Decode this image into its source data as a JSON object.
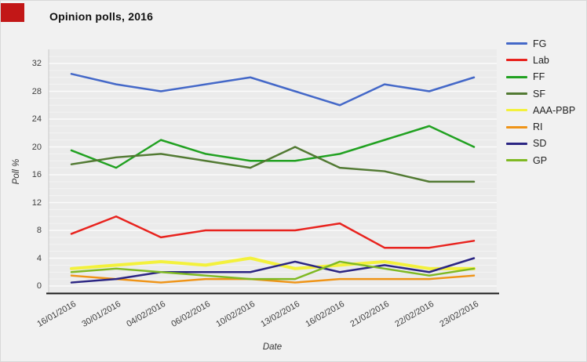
{
  "window": {
    "rec_indicator_color": "#c21717",
    "background_color": "#f1f1f1",
    "plot_background_color": "#ebebeb"
  },
  "chart_data": {
    "type": "line",
    "title": "Opinion polls, 2016",
    "xlabel": "Date",
    "ylabel": "Poll %",
    "x": [
      "16/01/2016",
      "30/01/2016",
      "04/02/2016",
      "06/02/2016",
      "10/02/2016",
      "13/02/2016",
      "16/02/2016",
      "21/02/2016",
      "22/02/2016",
      "23/02/2016"
    ],
    "series": [
      {
        "name": "FG",
        "color": "#4468c8",
        "values": [
          30.5,
          29,
          28,
          29,
          30,
          28,
          26,
          29,
          28,
          30
        ]
      },
      {
        "name": "Lab",
        "color": "#e8231e",
        "values": [
          7.5,
          10,
          7,
          8,
          8,
          8,
          9,
          5.5,
          5.5,
          6.5
        ]
      },
      {
        "name": "FF",
        "color": "#21a121",
        "values": [
          19.5,
          17,
          21,
          19,
          18,
          18,
          19,
          21,
          23,
          20
        ]
      },
      {
        "name": "SF",
        "color": "#527a33",
        "values": [
          17.5,
          18.5,
          19,
          18,
          17,
          20,
          17,
          16.5,
          15,
          15
        ]
      },
      {
        "name": "AAA-PBP",
        "color": "#f3f13c",
        "values": [
          2.5,
          3,
          3.5,
          3,
          4,
          2.5,
          3,
          3.5,
          2.5,
          2.5
        ]
      },
      {
        "name": "RI",
        "color": "#ef9417",
        "values": [
          1.5,
          1,
          0.5,
          1,
          1,
          0.5,
          1,
          1,
          1,
          1.5
        ]
      },
      {
        "name": "SD",
        "color": "#2b2583",
        "values": [
          0.5,
          1,
          2,
          2,
          2,
          3.5,
          2,
          3,
          2,
          4
        ]
      },
      {
        "name": "GP",
        "color": "#7fb923",
        "values": [
          2,
          2.5,
          2,
          1.5,
          1,
          1,
          3.5,
          2.5,
          1.5,
          2.5
        ]
      }
    ],
    "yticks": [
      0,
      4,
      8,
      12,
      16,
      20,
      24,
      28,
      32
    ],
    "ylim": [
      -1,
      34
    ],
    "grid": {
      "horizontal_minor_step": 1,
      "horizontal_major_step": 4,
      "vertical": false
    },
    "legend_position": "right"
  }
}
